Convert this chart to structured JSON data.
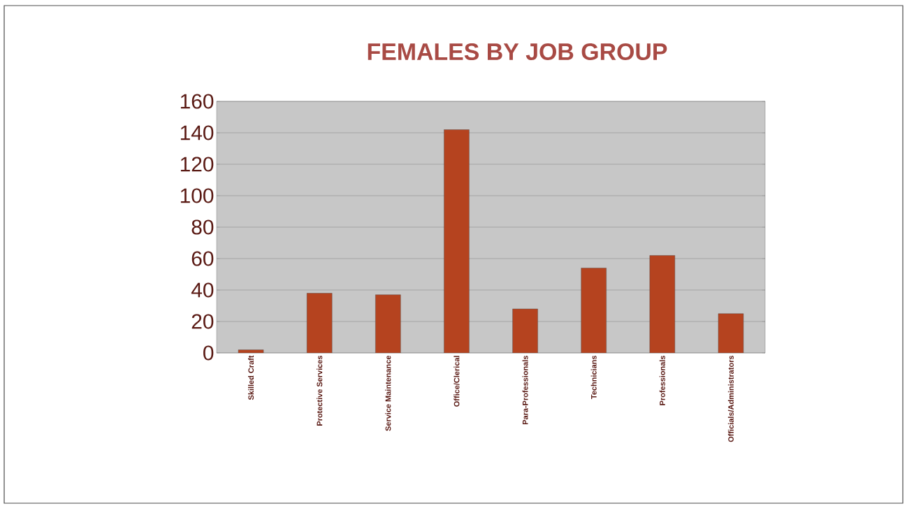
{
  "chart_data": {
    "type": "bar",
    "title": "FEMALES BY JOB GROUP",
    "categories": [
      "Skilled Craft",
      "Protective Services",
      "Service Maintenance",
      "Office/Clerical",
      "Para-Professionals",
      "Technicians",
      "Professionals",
      "Officials/Administrators"
    ],
    "values": [
      2,
      38,
      37,
      142,
      28,
      54,
      62,
      25
    ],
    "color": "#b5431f",
    "ylim": [
      0,
      160
    ],
    "yticks": [
      0,
      20,
      40,
      60,
      80,
      100,
      120,
      140,
      160
    ],
    "grid": "y"
  }
}
